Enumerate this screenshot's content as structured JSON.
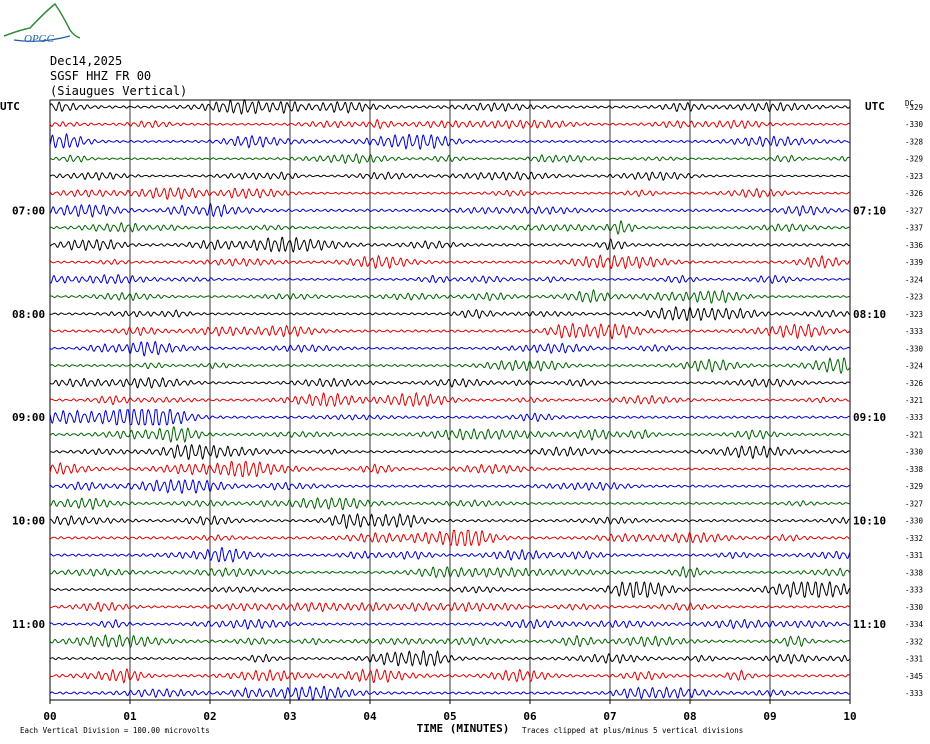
{
  "logo": {
    "text": "OPGC",
    "color": "#2e8b3a"
  },
  "header": {
    "date": "Dec14,2025",
    "station": "SGSF HHZ FR 00",
    "location": "(Siaugues Vertical)"
  },
  "chart_data": {
    "type": "line",
    "title": "SGSF HHZ FR 00",
    "xlabel": "TIME (MINUTES)",
    "ylabel": "",
    "x_ticks": [
      "00",
      "01",
      "02",
      "03",
      "04",
      "05",
      "06",
      "07",
      "08",
      "09",
      "10"
    ],
    "xlim": [
      0,
      10
    ],
    "left_axis_title": "UTC",
    "right_axis_title": "UTC",
    "dc_header": "DC",
    "left_time_labels": [
      {
        "row": 6,
        "label": "07:00"
      },
      {
        "row": 12,
        "label": "08:00"
      },
      {
        "row": 18,
        "label": "09:00"
      },
      {
        "row": 24,
        "label": "10:00"
      },
      {
        "row": 30,
        "label": "11:00"
      }
    ],
    "right_time_labels": [
      {
        "row": 6,
        "label": "07:10"
      },
      {
        "row": 12,
        "label": "08:10"
      },
      {
        "row": 18,
        "label": "09:10"
      },
      {
        "row": 24,
        "label": "10:10"
      },
      {
        "row": 30,
        "label": "11:10"
      }
    ],
    "trace_colors": [
      "#000000",
      "#e00000",
      "#0000d0",
      "#006400"
    ],
    "dc_offsets": [
      -329,
      -330,
      -328,
      -329,
      -323,
      -326,
      -327,
      -337,
      -336,
      -339,
      -324,
      -323,
      -323,
      -333,
      -330,
      -324,
      -326,
      -321,
      -333,
      -321,
      -330,
      -338,
      -329,
      -327,
      -330,
      -332,
      -331,
      -338,
      -333,
      -330,
      -334,
      -332,
      -331,
      -345,
      -333
    ],
    "amplitude_divisions": [
      2.2,
      1.8,
      2.0,
      1.6,
      1.5,
      1.8,
      2.4,
      2.0,
      2.3,
      2.0,
      1.8,
      1.7,
      1.9,
      2.2,
      1.8,
      2.0,
      1.7,
      2.0,
      2.1,
      2.2,
      2.0,
      1.9,
      2.0,
      1.9,
      2.2,
      2.3,
      2.1,
      1.9,
      2.0,
      1.9,
      2.0,
      2.3,
      2.1,
      2.2,
      2.1
    ],
    "clip_note": "Traces clipped at plus/minus 5 vertical divisions"
  },
  "footer": {
    "scale_note": "Each Vertical Division =  100.00 microvolts",
    "clip_note": "Traces clipped at plus/minus 5 vertical divisions"
  }
}
